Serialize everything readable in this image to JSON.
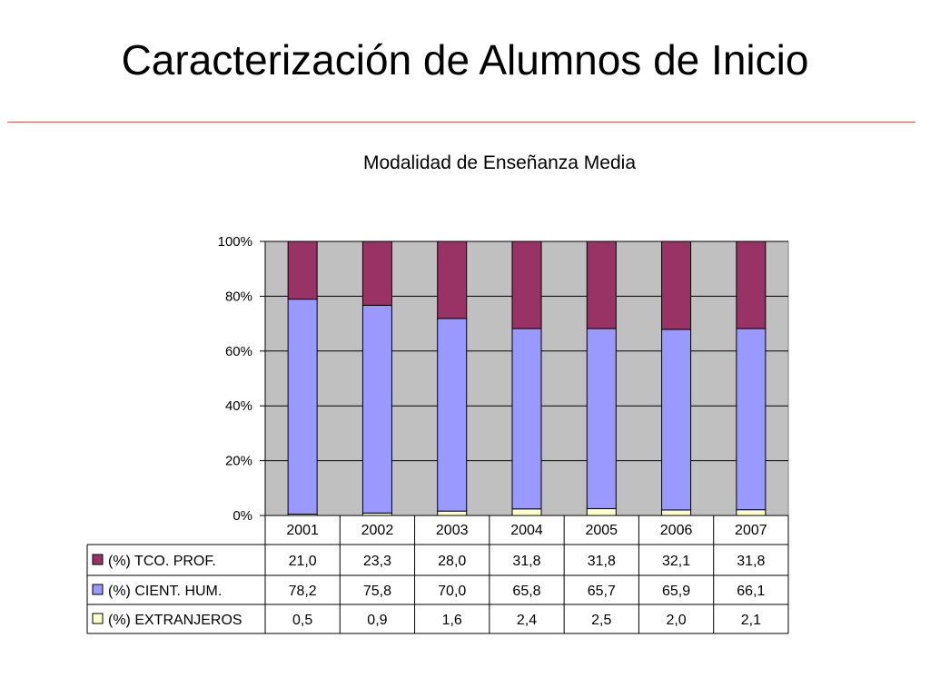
{
  "slide": {
    "title": "Caracterización de Alumnos de Inicio"
  },
  "chart_data": {
    "type": "bar",
    "stacked": true,
    "percent_stacked": true,
    "title": "Modalidad de Enseñanza Media",
    "xlabel": "",
    "ylabel": "",
    "ylim": [
      0,
      100
    ],
    "y_ticks": [
      "0%",
      "20%",
      "40%",
      "60%",
      "80%",
      "100%"
    ],
    "grid": true,
    "legend": "data-table-left",
    "categories": [
      "2001",
      "2002",
      "2003",
      "2004",
      "2005",
      "2006",
      "2007"
    ],
    "series": [
      {
        "name": "(%) TCO. PROF.",
        "color": "#993366",
        "values": [
          21.0,
          23.3,
          28.0,
          31.8,
          31.8,
          32.1,
          31.8
        ],
        "labels": [
          "21,0",
          "23,3",
          "28,0",
          "31,8",
          "31,8",
          "32,1",
          "31,8"
        ]
      },
      {
        "name": "(%) CIENT. HUM.",
        "color": "#9999ff",
        "values": [
          78.2,
          75.8,
          70.0,
          65.8,
          65.7,
          65.9,
          66.1
        ],
        "labels": [
          "78,2",
          "75,8",
          "70,0",
          "65,8",
          "65,7",
          "65,9",
          "66,1"
        ]
      },
      {
        "name": "(%) EXTRANJEROS",
        "color": "#ffffcc",
        "values": [
          0.5,
          0.9,
          1.6,
          2.4,
          2.5,
          2.0,
          2.1
        ],
        "labels": [
          "0,5",
          "0,9",
          "1,6",
          "2,4",
          "2,5",
          "2,0",
          "2,1"
        ]
      }
    ]
  },
  "colors": {
    "plot_background": "#c0c0c0",
    "title_rule": "#d9534f"
  }
}
